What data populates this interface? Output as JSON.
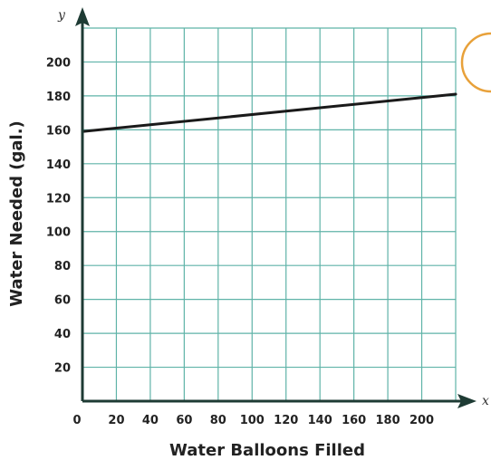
{
  "colors": {
    "grid": "#5fb3a8",
    "axis": "#1e3b34",
    "line": "#1a1a1a",
    "badge": "#e8a13a",
    "text": "#222222"
  },
  "chart_data": {
    "type": "line",
    "xlabel": "Water Balloons Filled",
    "ylabel": "Water Needed (gal.)",
    "x_axis_var": "x",
    "y_axis_var": "y",
    "xlim": [
      0,
      220
    ],
    "ylim": [
      0,
      220
    ],
    "xticks": [
      0,
      20,
      40,
      60,
      80,
      100,
      120,
      140,
      160,
      180,
      200
    ],
    "yticks": [
      20,
      40,
      60,
      80,
      100,
      120,
      140,
      160,
      180,
      200
    ],
    "xtick_labels": [
      "0",
      "20",
      "40",
      "60",
      "80",
      "100",
      "120",
      "140",
      "160",
      "180",
      "200"
    ],
    "ytick_labels": [
      "20",
      "40",
      "60",
      "80",
      "100",
      "120",
      "140",
      "160",
      "180",
      "200"
    ],
    "grid": true,
    "series": [
      {
        "x": [
          0,
          220
        ],
        "y": [
          159,
          181
        ]
      }
    ]
  }
}
